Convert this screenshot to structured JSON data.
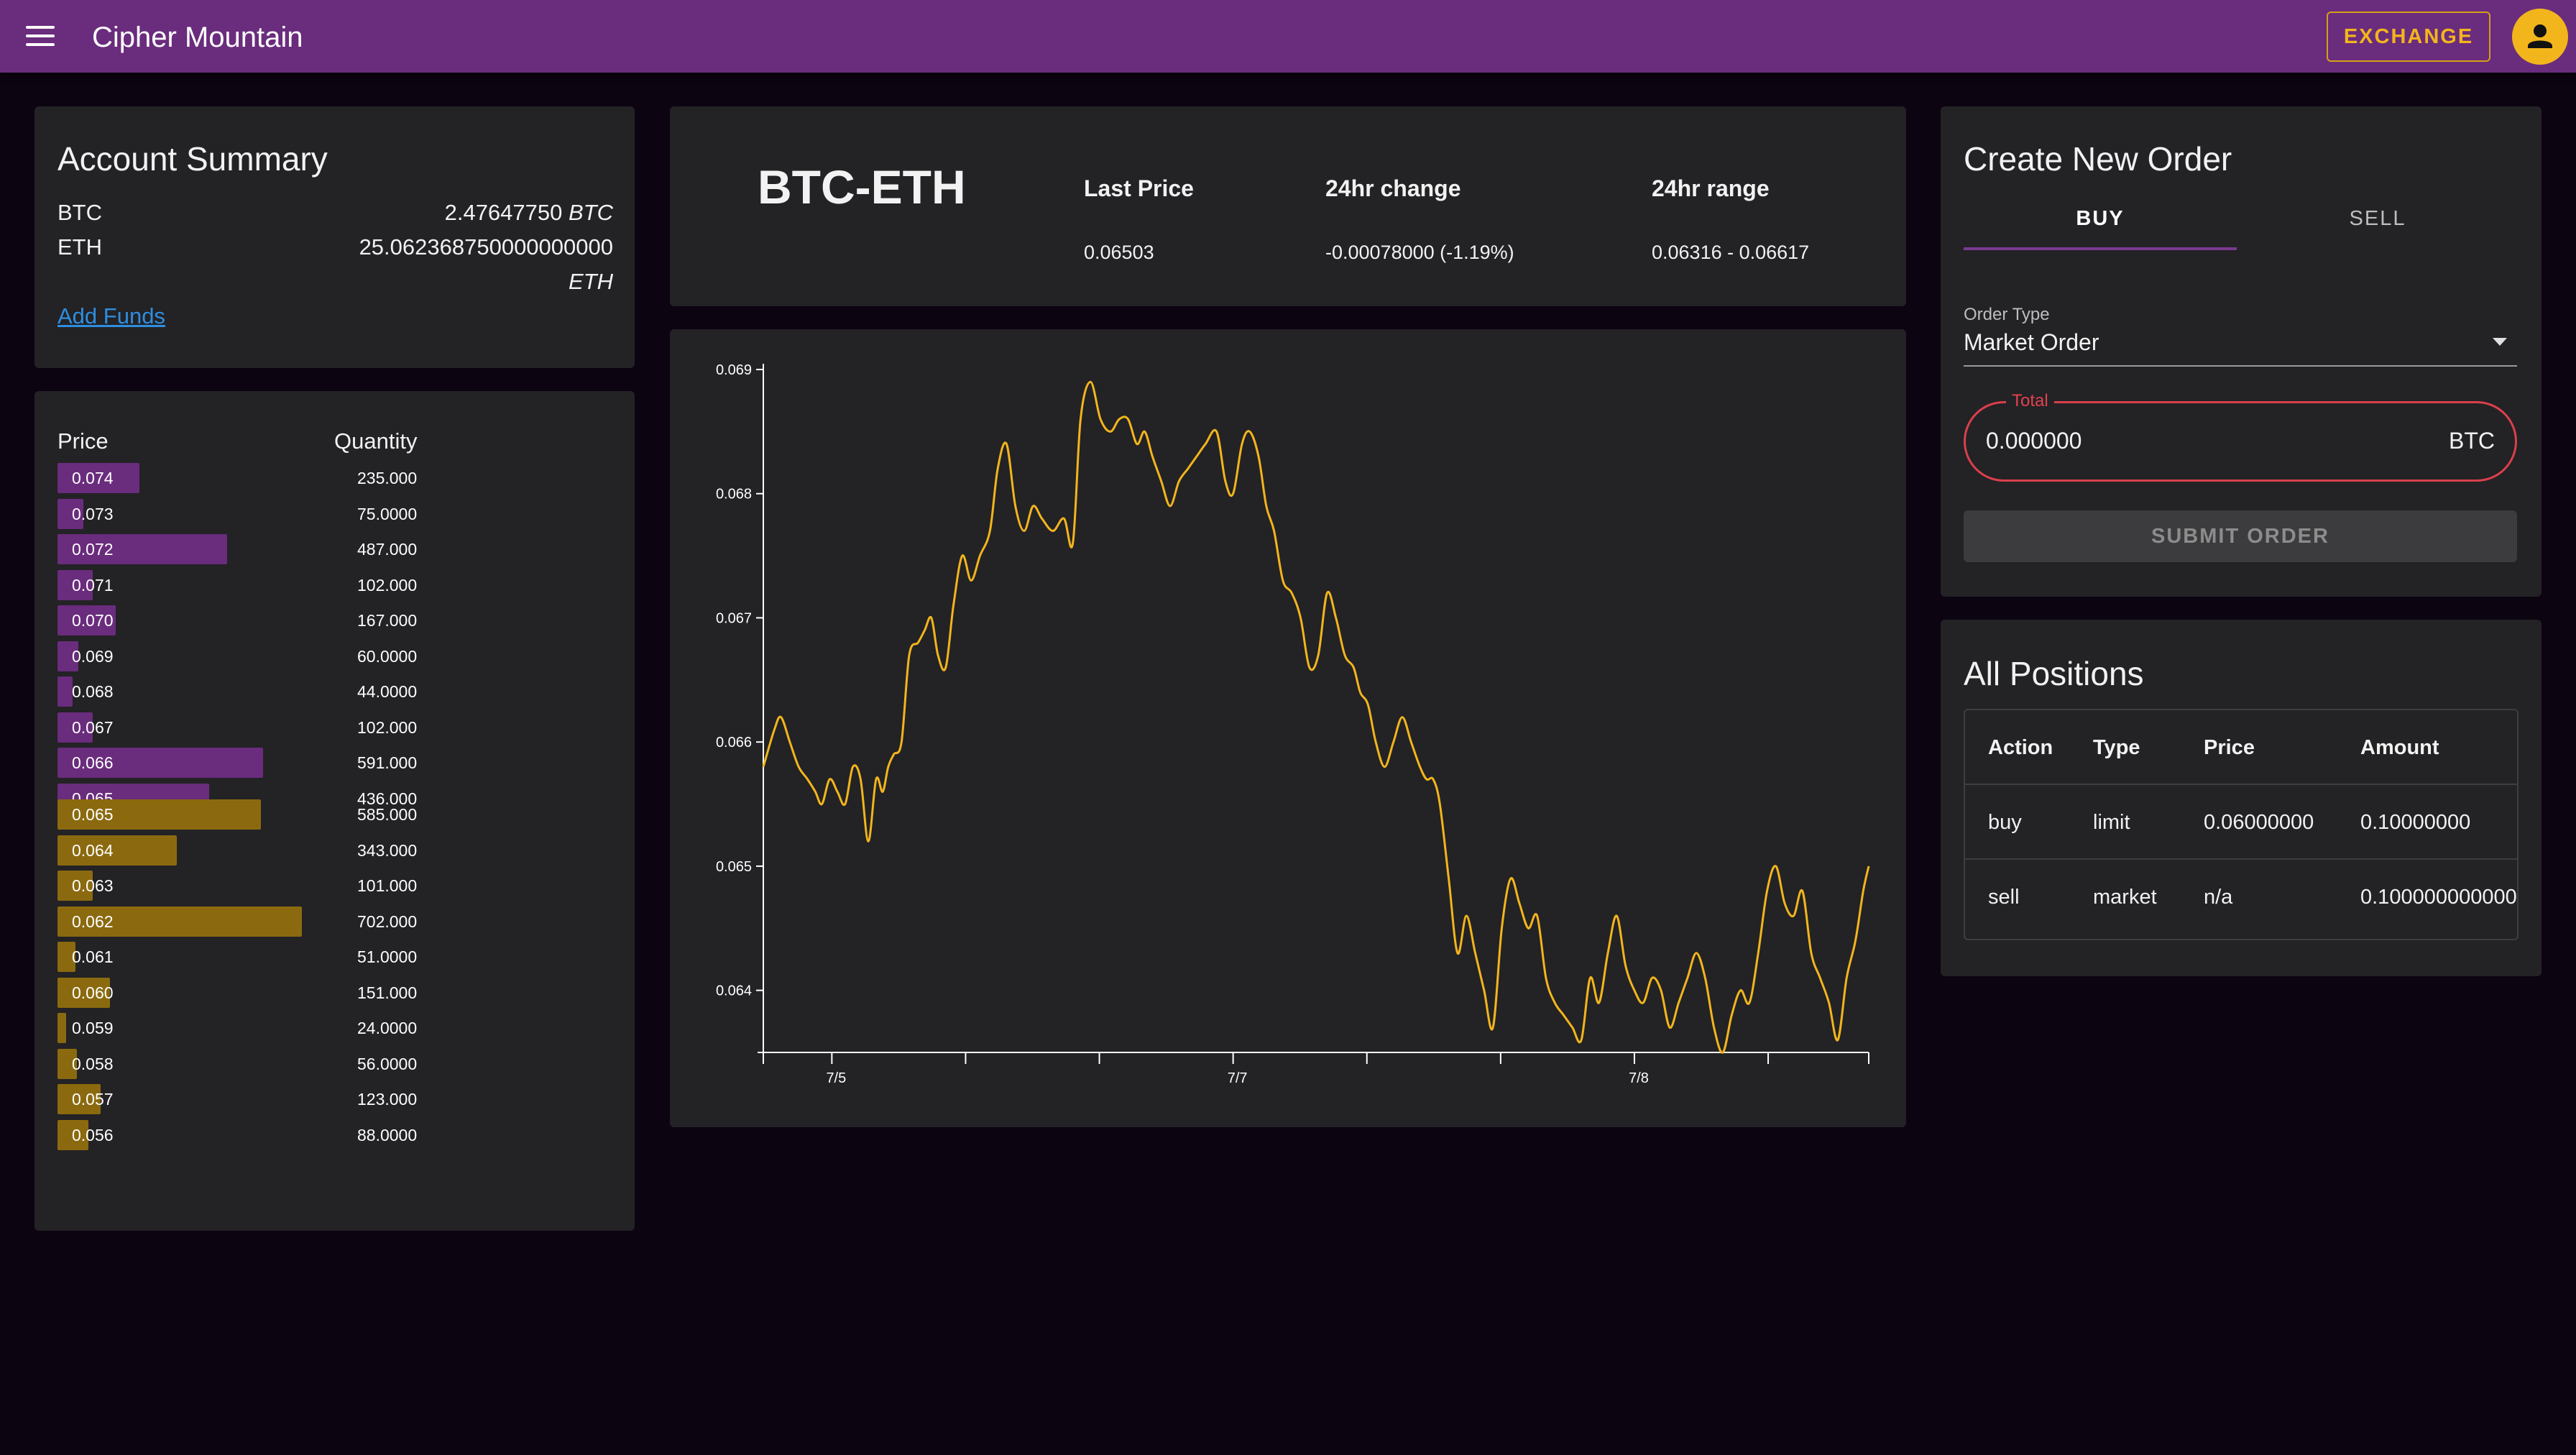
{
  "header": {
    "title": "Cipher Mountain",
    "exchange_label": "EXCHANGE"
  },
  "account_summary": {
    "title": "Account Summary",
    "balances": [
      {
        "symbol": "BTC",
        "amount": "2.47647750",
        "unit": "BTC"
      },
      {
        "symbol": "ETH",
        "amount": "25.062368750000000000",
        "unit": "ETH"
      }
    ],
    "add_funds_label": "Add Funds"
  },
  "order_book": {
    "price_header": "Price",
    "quantity_header": "Quantity",
    "bar_scale_max": 702,
    "asks": [
      {
        "price": "0.074",
        "quantity": "235.000",
        "volume": 235
      },
      {
        "price": "0.073",
        "quantity": "75.0000",
        "volume": 75
      },
      {
        "price": "0.072",
        "quantity": "487.000",
        "volume": 487
      },
      {
        "price": "0.071",
        "quantity": "102.000",
        "volume": 102
      },
      {
        "price": "0.070",
        "quantity": "167.000",
        "volume": 167
      },
      {
        "price": "0.069",
        "quantity": "60.0000",
        "volume": 60
      },
      {
        "price": "0.068",
        "quantity": "44.0000",
        "volume": 44
      },
      {
        "price": "0.067",
        "quantity": "102.000",
        "volume": 102
      },
      {
        "price": "0.066",
        "quantity": "591.000",
        "volume": 591
      },
      {
        "price": "0.065",
        "quantity": "436.000",
        "volume": 436
      }
    ],
    "bids": [
      {
        "price": "0.065",
        "quantity": "585.000",
        "volume": 585
      },
      {
        "price": "0.064",
        "quantity": "343.000",
        "volume": 343
      },
      {
        "price": "0.063",
        "quantity": "101.000",
        "volume": 101
      },
      {
        "price": "0.062",
        "quantity": "702.000",
        "volume": 702
      },
      {
        "price": "0.061",
        "quantity": "51.0000",
        "volume": 51
      },
      {
        "price": "0.060",
        "quantity": "151.000",
        "volume": 151
      },
      {
        "price": "0.059",
        "quantity": "24.0000",
        "volume": 24
      },
      {
        "price": "0.058",
        "quantity": "56.0000",
        "volume": 56
      },
      {
        "price": "0.057",
        "quantity": "123.000",
        "volume": 123
      },
      {
        "price": "0.056",
        "quantity": "88.0000",
        "volume": 88
      }
    ],
    "ask_color": "#6a2c7d",
    "bid_color": "#8b6a0f"
  },
  "ticker": {
    "pair": "BTC-ETH",
    "last_price_label": "Last Price",
    "last_price": "0.06503",
    "change_label": "24hr change",
    "change": "-0.00078000 (-1.19%)",
    "range_label": "24hr range",
    "range": "0.06316 - 0.06617"
  },
  "chart_data": {
    "type": "line",
    "line_color": "#f2b51c",
    "ylim": [
      0.0635,
      0.069
    ],
    "xlim": [
      0,
      1
    ],
    "y_ticks": [
      {
        "value": 0.069,
        "label": "0.069"
      },
      {
        "value": 0.068,
        "label": "0.068"
      },
      {
        "value": 0.067,
        "label": "0.067"
      },
      {
        "value": 0.066,
        "label": "0.066"
      },
      {
        "value": 0.065,
        "label": "0.065"
      },
      {
        "value": 0.064,
        "label": "0.064"
      }
    ],
    "x_ticks": [
      {
        "pos": 0.0,
        "label": ""
      },
      {
        "pos": 0.062,
        "label": "7/5"
      },
      {
        "pos": 0.183,
        "label": ""
      },
      {
        "pos": 0.304,
        "label": ""
      },
      {
        "pos": 0.425,
        "label": "7/7"
      },
      {
        "pos": 0.546,
        "label": ""
      },
      {
        "pos": 0.667,
        "label": ""
      },
      {
        "pos": 0.788,
        "label": "7/8"
      },
      {
        "pos": 0.909,
        "label": ""
      },
      {
        "pos": 1.0,
        "label": ""
      }
    ],
    "series": [
      {
        "x": [
          0.0,
          0.01,
          0.016,
          0.024,
          0.032,
          0.04,
          0.047,
          0.053,
          0.06,
          0.067,
          0.074,
          0.081,
          0.088,
          0.095,
          0.102,
          0.108,
          0.113,
          0.118,
          0.125,
          0.132,
          0.14,
          0.146,
          0.152,
          0.158,
          0.165,
          0.172,
          0.18,
          0.188,
          0.196,
          0.205,
          0.212,
          0.22,
          0.228,
          0.236,
          0.244,
          0.252,
          0.262,
          0.272,
          0.28,
          0.287,
          0.296,
          0.305,
          0.314,
          0.322,
          0.33,
          0.338,
          0.345,
          0.352,
          0.36,
          0.368,
          0.376,
          0.384,
          0.392,
          0.4,
          0.41,
          0.418,
          0.425,
          0.433,
          0.44,
          0.448,
          0.455,
          0.462,
          0.47,
          0.478,
          0.486,
          0.494,
          0.502,
          0.51,
          0.518,
          0.526,
          0.534,
          0.54,
          0.547,
          0.554,
          0.562,
          0.57,
          0.578,
          0.586,
          0.594,
          0.6,
          0.606,
          0.612,
          0.62,
          0.628,
          0.636,
          0.644,
          0.652,
          0.66,
          0.668,
          0.676,
          0.684,
          0.692,
          0.7,
          0.708,
          0.716,
          0.724,
          0.732,
          0.74,
          0.748,
          0.756,
          0.764,
          0.772,
          0.78,
          0.788,
          0.796,
          0.804,
          0.812,
          0.82,
          0.828,
          0.836,
          0.844,
          0.852,
          0.86,
          0.868,
          0.876,
          0.884,
          0.892,
          0.9,
          0.908,
          0.916,
          0.924,
          0.932,
          0.94,
          0.948,
          0.956,
          0.964,
          0.972,
          0.98,
          0.988,
          0.995,
          1.0
        ],
        "y": [
          0.0658,
          0.0661,
          0.0662,
          0.066,
          0.0658,
          0.0657,
          0.0656,
          0.0655,
          0.0657,
          0.0656,
          0.0655,
          0.0658,
          0.0657,
          0.0652,
          0.0657,
          0.0656,
          0.0658,
          0.0659,
          0.066,
          0.0667,
          0.0668,
          0.0669,
          0.067,
          0.0667,
          0.0666,
          0.0671,
          0.0675,
          0.0673,
          0.0675,
          0.0677,
          0.0682,
          0.0684,
          0.0679,
          0.0677,
          0.0679,
          0.0678,
          0.0677,
          0.0678,
          0.0676,
          0.0686,
          0.0689,
          0.0686,
          0.0685,
          0.0686,
          0.0686,
          0.0684,
          0.0685,
          0.0683,
          0.0681,
          0.0679,
          0.0681,
          0.0682,
          0.0683,
          0.0684,
          0.0685,
          0.0681,
          0.068,
          0.0684,
          0.0685,
          0.0683,
          0.0679,
          0.0677,
          0.0673,
          0.0672,
          0.067,
          0.0666,
          0.0667,
          0.0672,
          0.067,
          0.0667,
          0.0666,
          0.0664,
          0.0663,
          0.066,
          0.0658,
          0.066,
          0.0662,
          0.066,
          0.0658,
          0.0657,
          0.0657,
          0.0655,
          0.0649,
          0.0643,
          0.0646,
          0.0643,
          0.064,
          0.0637,
          0.0645,
          0.0649,
          0.0647,
          0.0645,
          0.0646,
          0.0641,
          0.0639,
          0.0638,
          0.0637,
          0.0636,
          0.0641,
          0.0639,
          0.0643,
          0.0646,
          0.0642,
          0.064,
          0.0639,
          0.0641,
          0.064,
          0.0637,
          0.0639,
          0.0641,
          0.0643,
          0.0641,
          0.0637,
          0.0635,
          0.0638,
          0.064,
          0.0639,
          0.0643,
          0.0648,
          0.065,
          0.0647,
          0.0646,
          0.0648,
          0.0643,
          0.0641,
          0.0639,
          0.0636,
          0.0641,
          0.0644,
          0.0648,
          0.065
        ]
      }
    ]
  },
  "order_form": {
    "title": "Create New Order",
    "tab_buy": "BUY",
    "tab_sell": "SELL",
    "order_type_label": "Order Type",
    "order_type_value": "Market Order",
    "total_label": "Total",
    "total_value": "0.000000",
    "total_unit": "BTC",
    "submit_label": "SUBMIT ORDER"
  },
  "positions": {
    "title": "All Positions",
    "headers": {
      "action": "Action",
      "type": "Type",
      "price": "Price",
      "amount": "Amount"
    },
    "rows": [
      {
        "action": "buy",
        "type": "limit",
        "price": "0.06000000",
        "amount": "0.10000000"
      },
      {
        "action": "sell",
        "type": "market",
        "price": "n/a",
        "amount": "0.100000000000"
      }
    ]
  }
}
